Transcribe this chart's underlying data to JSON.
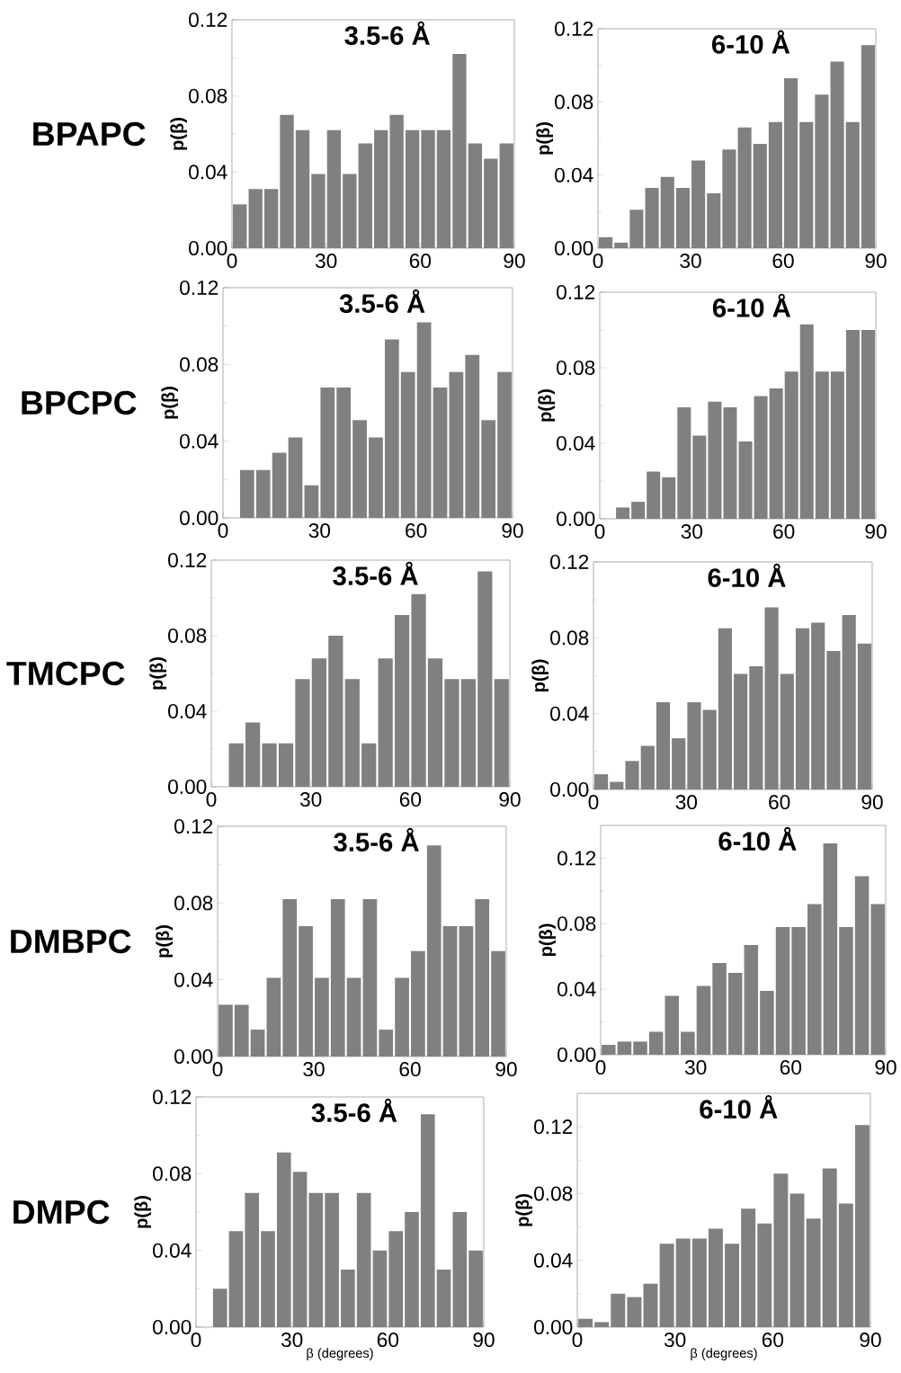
{
  "chart_data": [
    {
      "type": "histogram",
      "title": "3.5-6 Å",
      "ylabel": "p(β)",
      "annotations": [
        "BPAPC"
      ],
      "color": "#808080",
      "bins": [
        0,
        5,
        10,
        15,
        20,
        25,
        30,
        35,
        40,
        45,
        50,
        55,
        60,
        65,
        70,
        75,
        80,
        85,
        90
      ],
      "values": [
        0.023,
        0.031,
        0.031,
        0.07,
        0.062,
        0.039,
        0.062,
        0.039,
        0.055,
        0.062,
        0.07,
        0.062,
        0.062,
        0.062,
        0.102,
        0.055,
        0.047,
        0.055
      ],
      "xlim": [
        0,
        90
      ],
      "xticks": [
        0,
        30,
        60,
        90
      ],
      "ylim": [
        0,
        0.12
      ],
      "yticks": [
        {
          "value": 0,
          "label": "0.00"
        },
        {
          "value": 0.04,
          "label": "0.04"
        },
        {
          "value": 0.08,
          "label": "0.08"
        },
        {
          "value": 0.12,
          "label": "0.12"
        }
      ]
    },
    {
      "type": "histogram",
      "title": "6-10 Å",
      "ylabel": "p(β)",
      "color": "#808080",
      "bins": [
        0,
        5,
        10,
        15,
        20,
        25,
        30,
        35,
        40,
        45,
        50,
        55,
        60,
        65,
        70,
        75,
        80,
        85,
        90
      ],
      "values": [
        0.006,
        0.003,
        0.021,
        0.033,
        0.039,
        0.033,
        0.048,
        0.03,
        0.054,
        0.066,
        0.057,
        0.069,
        0.093,
        0.069,
        0.084,
        0.102,
        0.069,
        0.111
      ],
      "xlim": [
        0,
        90
      ],
      "xticks": [
        0,
        30,
        60,
        90
      ],
      "ylim": [
        0,
        0.12
      ],
      "yticks": [
        {
          "value": 0,
          "label": "0.00"
        },
        {
          "value": 0.04,
          "label": "0.04"
        },
        {
          "value": 0.08,
          "label": "0.08"
        },
        {
          "value": 0.12,
          "label": "0.12"
        }
      ]
    },
    {
      "type": "histogram",
      "title": "3.5-6 Å",
      "ylabel": "p(β)",
      "annotations": [
        "BPCPC"
      ],
      "color": "#808080",
      "bins": [
        0,
        5,
        10,
        15,
        20,
        25,
        30,
        35,
        40,
        45,
        50,
        55,
        60,
        65,
        70,
        75,
        80,
        85,
        90
      ],
      "values": [
        0,
        0.025,
        0.025,
        0.034,
        0.042,
        0.017,
        0.068,
        0.068,
        0.051,
        0.042,
        0.093,
        0.076,
        0.102,
        0.068,
        0.076,
        0.085,
        0.051,
        0.076
      ],
      "xlim": [
        0,
        90
      ],
      "xticks": [
        0,
        30,
        60,
        90
      ],
      "ylim": [
        0,
        0.12
      ],
      "yticks": [
        {
          "value": 0,
          "label": "0.00"
        },
        {
          "value": 0.04,
          "label": "0.04"
        },
        {
          "value": 0.08,
          "label": "0.08"
        },
        {
          "value": 0.12,
          "label": "0.12"
        }
      ]
    },
    {
      "type": "histogram",
      "title": "6-10 Å",
      "ylabel": "p(β)",
      "color": "#808080",
      "bins": [
        0,
        5,
        10,
        15,
        20,
        25,
        30,
        35,
        40,
        45,
        50,
        55,
        60,
        65,
        70,
        75,
        80,
        85,
        90
      ],
      "values": [
        0,
        0.006,
        0.009,
        0.025,
        0.022,
        0.059,
        0.044,
        0.062,
        0.059,
        0.041,
        0.065,
        0.069,
        0.078,
        0.103,
        0.078,
        0.078,
        0.1,
        0.1
      ],
      "xlim": [
        0,
        90
      ],
      "xticks": [
        0,
        30,
        60,
        90
      ],
      "ylim": [
        0,
        0.12
      ],
      "yticks": [
        {
          "value": 0,
          "label": "0.00"
        },
        {
          "value": 0.04,
          "label": "0.04"
        },
        {
          "value": 0.08,
          "label": "0.08"
        },
        {
          "value": 0.12,
          "label": "0.12"
        }
      ]
    },
    {
      "type": "histogram",
      "title": "3.5-6 Å",
      "ylabel": "p(β)",
      "annotations": [
        "TMCPC"
      ],
      "color": "#808080",
      "bins": [
        0,
        5,
        10,
        15,
        20,
        25,
        30,
        35,
        40,
        45,
        50,
        55,
        60,
        65,
        70,
        75,
        80,
        85,
        90
      ],
      "values": [
        0,
        0.023,
        0.034,
        0.023,
        0.023,
        0.057,
        0.068,
        0.08,
        0.057,
        0.023,
        0.068,
        0.091,
        0.102,
        0.068,
        0.057,
        0.057,
        0.114,
        0.057
      ],
      "xlim": [
        0,
        90
      ],
      "xticks": [
        0,
        30,
        60,
        90
      ],
      "ylim": [
        0,
        0.12
      ],
      "yticks": [
        {
          "value": 0,
          "label": "0.00"
        },
        {
          "value": 0.04,
          "label": "0.04"
        },
        {
          "value": 0.08,
          "label": "0.08"
        },
        {
          "value": 0.12,
          "label": "0.12"
        }
      ]
    },
    {
      "type": "histogram",
      "title": "6-10 Å",
      "ylabel": "p(β)",
      "color": "#808080",
      "bins": [
        0,
        5,
        10,
        15,
        20,
        25,
        30,
        35,
        40,
        45,
        50,
        55,
        60,
        65,
        70,
        75,
        80,
        85,
        90
      ],
      "values": [
        0.008,
        0.004,
        0.015,
        0.023,
        0.046,
        0.027,
        0.046,
        0.042,
        0.085,
        0.061,
        0.065,
        0.096,
        0.061,
        0.085,
        0.088,
        0.073,
        0.092,
        0.077
      ],
      "xlim": [
        0,
        90
      ],
      "xticks": [
        0,
        30,
        60,
        90
      ],
      "ylim": [
        0,
        0.12
      ],
      "yticks": [
        {
          "value": 0,
          "label": "0.00"
        },
        {
          "value": 0.04,
          "label": "0.04"
        },
        {
          "value": 0.08,
          "label": "0.08"
        },
        {
          "value": 0.12,
          "label": "0.12"
        }
      ]
    },
    {
      "type": "histogram",
      "title": "3.5-6 Å",
      "ylabel": "p(β)",
      "annotations": [
        "DMBPC"
      ],
      "color": "#808080",
      "bins": [
        0,
        5,
        10,
        15,
        20,
        25,
        30,
        35,
        40,
        45,
        50,
        55,
        60,
        65,
        70,
        75,
        80,
        85,
        90
      ],
      "values": [
        0.027,
        0.027,
        0.014,
        0.041,
        0.082,
        0.068,
        0.041,
        0.082,
        0.041,
        0.082,
        0.014,
        0.041,
        0.055,
        0.11,
        0.068,
        0.068,
        0.082,
        0.055
      ],
      "xlim": [
        0,
        90
      ],
      "xticks": [
        0,
        30,
        60,
        90
      ],
      "ylim": [
        0,
        0.12
      ],
      "yticks": [
        {
          "value": 0,
          "label": "0.00"
        },
        {
          "value": 0.04,
          "label": "0.04"
        },
        {
          "value": 0.08,
          "label": "0.08"
        },
        {
          "value": 0.12,
          "label": "0.12"
        }
      ]
    },
    {
      "type": "histogram",
      "title": "6-10 Å",
      "ylabel": "p(β)",
      "color": "#808080",
      "bins": [
        0,
        5,
        10,
        15,
        20,
        25,
        30,
        35,
        40,
        45,
        50,
        55,
        60,
        65,
        70,
        75,
        80,
        85,
        90
      ],
      "values": [
        0.006,
        0.008,
        0.008,
        0.014,
        0.036,
        0.014,
        0.042,
        0.056,
        0.05,
        0.067,
        0.039,
        0.078,
        0.078,
        0.092,
        0.129,
        0.078,
        0.109,
        0.092
      ],
      "xlim": [
        0,
        90
      ],
      "xticks": [
        0,
        30,
        60,
        90
      ],
      "ylim": [
        0,
        0.14
      ],
      "yticks": [
        {
          "value": 0,
          "label": "0.00"
        },
        {
          "value": 0.04,
          "label": "0.04"
        },
        {
          "value": 0.08,
          "label": "0.08"
        },
        {
          "value": 0.12,
          "label": "0.12"
        }
      ]
    },
    {
      "type": "histogram",
      "title": "3.5-6 Å",
      "ylabel": "p(β)",
      "xlabel": "β (degrees)",
      "annotations": [
        "DMPC"
      ],
      "color": "#808080",
      "bins": [
        0,
        5,
        10,
        15,
        20,
        25,
        30,
        35,
        40,
        45,
        50,
        55,
        60,
        65,
        70,
        75,
        80,
        85,
        90
      ],
      "values": [
        0,
        0.02,
        0.05,
        0.07,
        0.05,
        0.091,
        0.081,
        0.07,
        0.07,
        0.03,
        0.07,
        0.04,
        0.05,
        0.06,
        0.111,
        0.03,
        0.06,
        0.04
      ],
      "xlim": [
        0,
        90
      ],
      "xticks": [
        0,
        30,
        60,
        90
      ],
      "ylim": [
        0,
        0.12
      ],
      "yticks": [
        {
          "value": 0,
          "label": "0.00"
        },
        {
          "value": 0.04,
          "label": "0.04"
        },
        {
          "value": 0.08,
          "label": "0.08"
        },
        {
          "value": 0.12,
          "label": "0.12"
        }
      ]
    },
    {
      "type": "histogram",
      "title": "6-10 Å",
      "ylabel": "p(β)",
      "xlabel": "β (degrees)",
      "color": "#808080",
      "bins": [
        0,
        5,
        10,
        15,
        20,
        25,
        30,
        35,
        40,
        45,
        50,
        55,
        60,
        65,
        70,
        75,
        80,
        85,
        90
      ],
      "values": [
        0.005,
        0.003,
        0.02,
        0.018,
        0.026,
        0.05,
        0.053,
        0.053,
        0.059,
        0.05,
        0.071,
        0.062,
        0.092,
        0.08,
        0.065,
        0.095,
        0.074,
        0.121
      ],
      "xlim": [
        0,
        90
      ],
      "xticks": [
        0,
        30,
        60,
        90
      ],
      "ylim": [
        0,
        0.14
      ],
      "yticks": [
        {
          "value": 0,
          "label": "0.00"
        },
        {
          "value": 0.04,
          "label": "0.04"
        },
        {
          "value": 0.08,
          "label": "0.08"
        },
        {
          "value": 0.12,
          "label": "0.12"
        }
      ]
    }
  ]
}
